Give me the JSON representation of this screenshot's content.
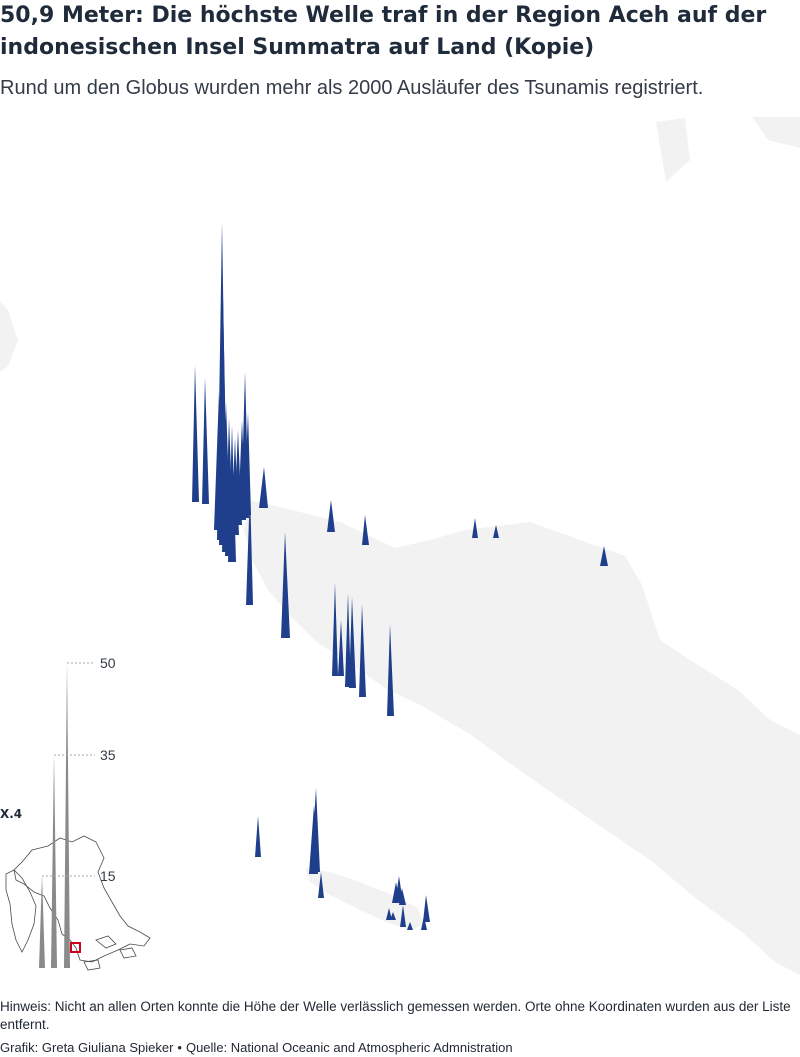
{
  "title": "50,9 Meter: Die höchste Welle traf in der Region Aceh auf der indonesischen Insel Summatra auf Land (Kopie)",
  "subtitle": "Rund um den Globus wurden mehr als 2000 Ausläufer des Tsunamis registriert.",
  "legend": {
    "scale_values": [
      "50",
      "35",
      "15"
    ],
    "region_label": "X.4"
  },
  "colors": {
    "spike": "#1f3e8c",
    "land": "#f2f2f2",
    "legend_spike": "#888888",
    "locator_box": "#d0021b"
  },
  "footer": {
    "note": "Hinweis: Nicht an allen Orten konnte die Höhe der Welle verlässlich gemessen werden. Orte ohne Koordinaten wurden aus der Liste entfernt.",
    "credit": "Grafik: Greta Giuliana Spieker",
    "separator": "•",
    "source": "Quelle: National Oceanic and Atmospheric Admnistration"
  }
}
